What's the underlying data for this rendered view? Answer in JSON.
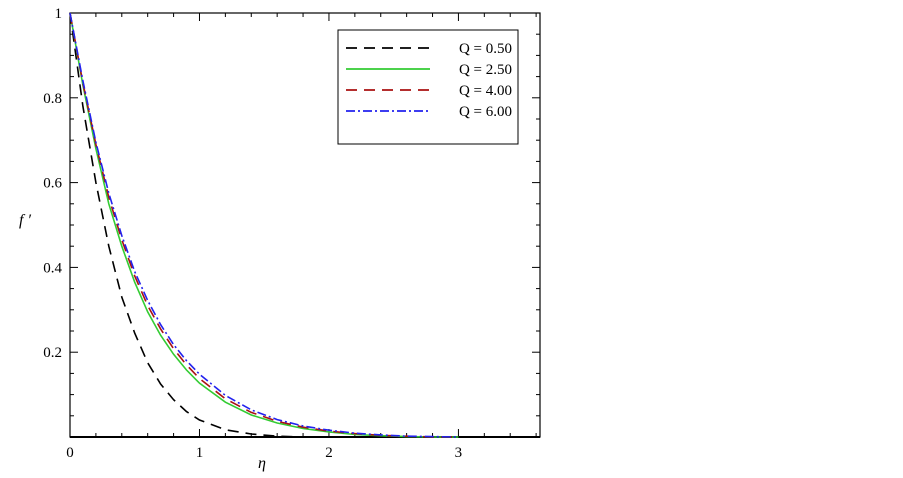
{
  "chart_data": {
    "type": "line",
    "title": "",
    "xlabel": "η",
    "ylabel": "f ′",
    "xlim": [
      0,
      3.63
    ],
    "ylim": [
      0,
      1.0
    ],
    "x_ticks": [
      0,
      1,
      2,
      3
    ],
    "x_tick_labels": [
      "0",
      "1",
      "2",
      "3"
    ],
    "y_ticks": [
      0.2,
      0.4,
      0.6,
      0.8,
      1.0
    ],
    "y_tick_labels": [
      "0.2",
      "0.4",
      "0.6",
      "0.8",
      "1"
    ],
    "grid": false,
    "legend_position": "top-right",
    "x": [
      0,
      0.1,
      0.2,
      0.3,
      0.4,
      0.5,
      0.6,
      0.7,
      0.8,
      0.9,
      1.0,
      1.2,
      1.4,
      1.6,
      1.8,
      2.0,
      2.2,
      2.4,
      2.6,
      2.8,
      3.0
    ],
    "series": [
      {
        "name": "Q = 0.50",
        "color": "#000000",
        "dash": "long-dash",
        "values": [
          1.0,
          0.78,
          0.6,
          0.45,
          0.33,
          0.245,
          0.175,
          0.125,
          0.088,
          0.06,
          0.04,
          0.017,
          0.007,
          0.002,
          0.0,
          0.0,
          0.0,
          0.0,
          0.0,
          0.0,
          0.0
        ]
      },
      {
        "name": "Q = 2.50",
        "color": "#33cc33",
        "dash": "solid",
        "values": [
          1.0,
          0.83,
          0.68,
          0.55,
          0.45,
          0.365,
          0.295,
          0.24,
          0.195,
          0.158,
          0.127,
          0.082,
          0.052,
          0.033,
          0.02,
          0.012,
          0.006,
          0.003,
          0.001,
          0.0,
          0.0
        ]
      },
      {
        "name": "Q = 4.00",
        "color": "#aa1111",
        "dash": "long-dash",
        "values": [
          1.0,
          0.835,
          0.69,
          0.565,
          0.465,
          0.38,
          0.31,
          0.255,
          0.208,
          0.17,
          0.138,
          0.09,
          0.058,
          0.037,
          0.023,
          0.014,
          0.008,
          0.004,
          0.002,
          0.0,
          0.0
        ]
      },
      {
        "name": "Q = 6.00",
        "color": "#2222ee",
        "dash": "dash-dot",
        "values": [
          1.0,
          0.84,
          0.695,
          0.575,
          0.475,
          0.39,
          0.322,
          0.265,
          0.218,
          0.18,
          0.148,
          0.098,
          0.064,
          0.041,
          0.026,
          0.016,
          0.009,
          0.005,
          0.002,
          0.001,
          0.0
        ]
      }
    ]
  }
}
